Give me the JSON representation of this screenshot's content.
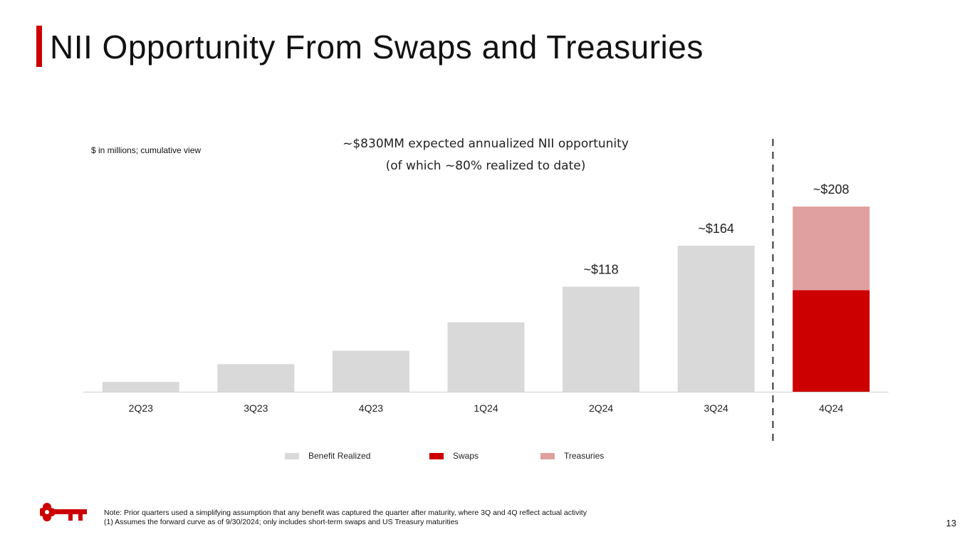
{
  "page": {
    "title": "NII Opportunity From Swaps and Treasuries",
    "page_number": "13",
    "accent_color": "#cc0000"
  },
  "chart_data": {
    "type": "bar",
    "stacked": true,
    "units_note": "$ in millions; cumulative view",
    "headline_line1": "~$830MM expected annualized NII opportunity",
    "headline_line2": "(of which ~80% realized to date)",
    "categories": [
      "2Q23",
      "3Q23",
      "4Q23",
      "1Q24",
      "2Q24",
      "3Q24",
      "4Q24"
    ],
    "series": [
      {
        "name": "Benefit Realized",
        "color": "#d9d9d9",
        "values": [
          11,
          31,
          46,
          78,
          118,
          164,
          0
        ]
      },
      {
        "name": "Swaps",
        "color": "#cc0000",
        "values": [
          0,
          0,
          0,
          0,
          0,
          0,
          114
        ]
      },
      {
        "name": "Treasuries",
        "color": "#e0a0a0",
        "values": [
          0,
          0,
          0,
          0,
          0,
          0,
          94
        ]
      }
    ],
    "total_labels": [
      "",
      "",
      "",
      "",
      "~$118",
      "~$164",
      "~$208"
    ],
    "ylim": [
      0,
      240
    ],
    "divider": "dashed line between 3Q24 and 4Q24",
    "legend_position": "bottom"
  },
  "footnotes": {
    "note": "Note: Prior quarters used a simplifying assumption that any benefit was captured the quarter after maturity, where 3Q and 4Q reflect actual activity",
    "note1": "(1) Assumes the forward curve as of 9/30/2024; only includes short-term swaps and US Treasury maturities"
  },
  "logo": {
    "icon": "key-icon",
    "color": "#cc0000"
  }
}
